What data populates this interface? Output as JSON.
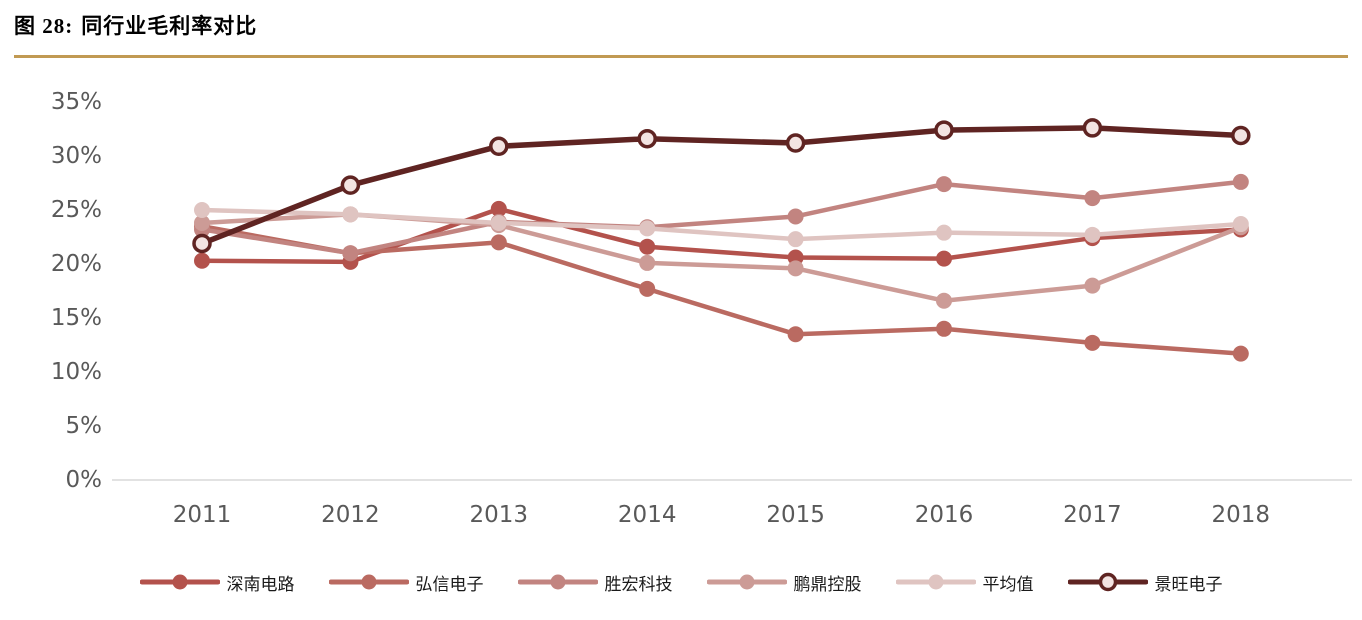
{
  "header": {
    "figure_label": "图 28:",
    "title": "同行业毛利率对比"
  },
  "colors": {
    "title_text": "#000000",
    "rule": "#c19a53",
    "axis_text": "#595959",
    "axis_line": "#d9d9d9",
    "background": "#ffffff",
    "legend_text": "#1a1a1a"
  },
  "chart_data": {
    "type": "line",
    "title": "同行业毛利率对比",
    "xlabel": "",
    "ylabel": "",
    "ylim": [
      0,
      35
    ],
    "ytick_step": 5,
    "grid": false,
    "legend_position": "bottom",
    "categories": [
      "2011",
      "2012",
      "2013",
      "2014",
      "2015",
      "2016",
      "2017",
      "2018"
    ],
    "yticks": [
      {
        "value": 0,
        "label": "0%"
      },
      {
        "value": 5,
        "label": "5%"
      },
      {
        "value": 10,
        "label": "10%"
      },
      {
        "value": 15,
        "label": "15%"
      },
      {
        "value": 20,
        "label": "20%"
      },
      {
        "value": 25,
        "label": "25%"
      },
      {
        "value": 30,
        "label": "30%"
      },
      {
        "value": 35,
        "label": "35%"
      }
    ],
    "series": [
      {
        "name": "深南电路",
        "color": "#b3524c",
        "marker_fill": "#b3524c",
        "line_width": 4.5,
        "values": [
          20.3,
          20.2,
          25.1,
          21.6,
          20.6,
          20.5,
          22.4,
          23.2
        ]
      },
      {
        "name": "弘信电子",
        "color": "#ba6a61",
        "marker_fill": "#ba6a61",
        "line_width": 4.5,
        "values": [
          23.5,
          21.0,
          22.0,
          17.7,
          13.5,
          14.0,
          12.7,
          11.7
        ]
      },
      {
        "name": "胜宏科技",
        "color": "#c28480",
        "marker_fill": "#c28480",
        "line_width": 4.5,
        "values": [
          23.2,
          21.0,
          23.9,
          23.4,
          24.4,
          27.4,
          26.1,
          27.6
        ]
      },
      {
        "name": "鹏鼎控股",
        "color": "#cc9b96",
        "marker_fill": "#cc9b96",
        "line_width": 4.5,
        "values": [
          23.8,
          24.6,
          23.6,
          20.1,
          19.6,
          16.6,
          18.0,
          23.4
        ]
      },
      {
        "name": "平均值",
        "color": "#dfc4c1",
        "marker_fill": "#dfc4c1",
        "line_width": 4.5,
        "values": [
          25.0,
          24.6,
          23.8,
          23.3,
          22.3,
          22.9,
          22.7,
          23.7
        ]
      },
      {
        "name": "景旺电子",
        "color": "#5f2422",
        "marker_fill": "#f3e4e2",
        "line_width": 5.5,
        "values": [
          21.9,
          27.3,
          30.9,
          31.6,
          31.2,
          32.4,
          32.6,
          31.9
        ]
      }
    ]
  }
}
